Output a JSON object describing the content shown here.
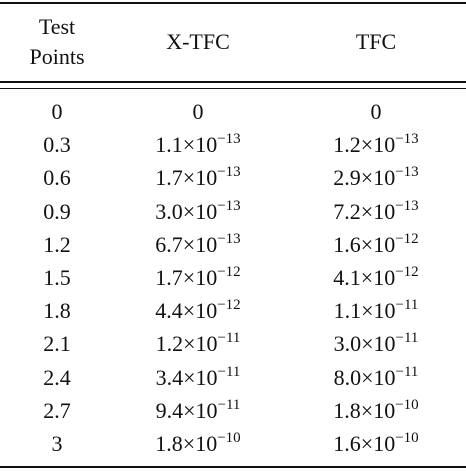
{
  "table": {
    "header": [
      "Test Points",
      "X-TFC",
      "TFC"
    ],
    "rows": [
      [
        "0",
        "0",
        "0"
      ],
      [
        "0.3",
        {
          "base": "1.1×10",
          "exp": "−13"
        },
        {
          "base": "1.2×10",
          "exp": "−13"
        }
      ],
      [
        "0.6",
        {
          "base": "1.7×10",
          "exp": "−13"
        },
        {
          "base": "2.9×10",
          "exp": "−13"
        }
      ],
      [
        "0.9",
        {
          "base": "3.0×10",
          "exp": "−13"
        },
        {
          "base": "7.2×10",
          "exp": "−13"
        }
      ],
      [
        "1.2",
        {
          "base": "6.7×10",
          "exp": "−13"
        },
        {
          "base": "1.6×10",
          "exp": "−12"
        }
      ],
      [
        "1.5",
        {
          "base": "1.7×10",
          "exp": "−12"
        },
        {
          "base": "4.1×10",
          "exp": "−12"
        }
      ],
      [
        "1.8",
        {
          "base": "4.4×10",
          "exp": "−12"
        },
        {
          "base": "1.1×10",
          "exp": "−11"
        }
      ],
      [
        "2.1",
        {
          "base": "1.2×10",
          "exp": "−11"
        },
        {
          "base": "3.0×10",
          "exp": "−11"
        }
      ],
      [
        "2.4",
        {
          "base": "3.4×10",
          "exp": "−11"
        },
        {
          "base": "8.0×10",
          "exp": "−11"
        }
      ],
      [
        "2.7",
        {
          "base": "9.4×10",
          "exp": "−11"
        },
        {
          "base": "1.8×10",
          "exp": "−10"
        }
      ],
      [
        "3",
        {
          "base": "1.8×10",
          "exp": "−10"
        },
        {
          "base": "1.6×10",
          "exp": "−10"
        }
      ]
    ]
  }
}
